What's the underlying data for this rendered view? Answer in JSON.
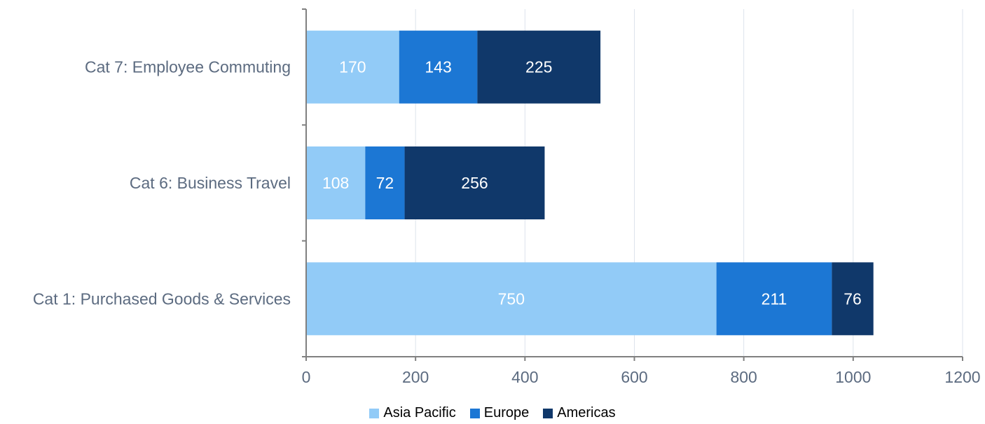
{
  "chart_data": {
    "type": "bar",
    "orientation": "horizontal",
    "stacked": true,
    "categories": [
      "Cat 7: Employee Commuting",
      "Cat 6: Business Travel",
      "Cat 1: Purchased Goods & Services"
    ],
    "series": [
      {
        "name": "Asia Pacific",
        "color": "#92cbf7",
        "values": [
          170,
          108,
          750
        ]
      },
      {
        "name": "Europe",
        "color": "#1c77d4",
        "values": [
          143,
          72,
          211
        ]
      },
      {
        "name": "Americas",
        "color": "#10386a",
        "values": [
          225,
          256,
          76
        ]
      }
    ],
    "xlim": [
      0,
      1200
    ],
    "xticks": [
      "0",
      "200",
      "400",
      "600",
      "800",
      "1000",
      "1200"
    ],
    "title": "",
    "xlabel": "",
    "ylabel": "",
    "grid": "vertical",
    "legend_position": "bottom",
    "data_labels": true
  }
}
